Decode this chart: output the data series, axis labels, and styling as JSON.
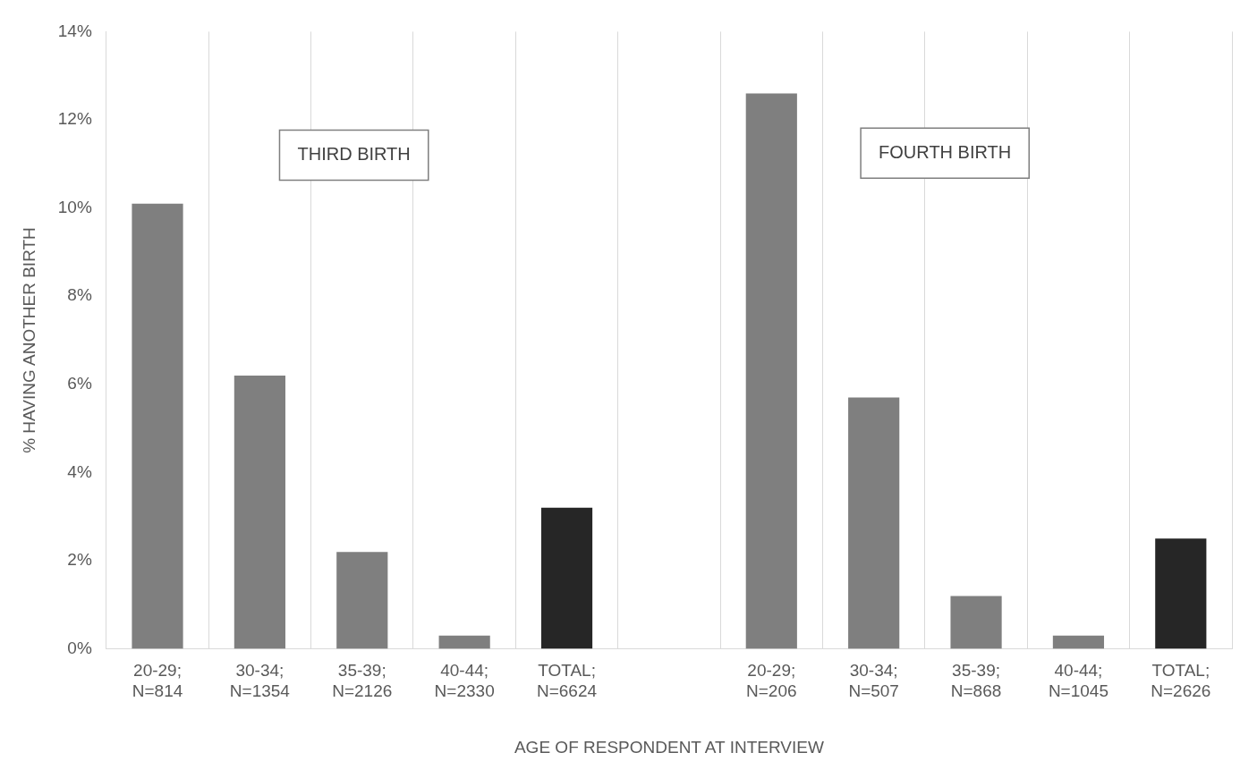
{
  "chart_data": {
    "type": "bar",
    "xlabel": "AGE OF RESPONDENT AT INTERVIEW",
    "ylabel": "% HAVING ANOTHER BIRTH",
    "categories": [
      "20-29;\nN=814",
      "30-34;\nN=1354",
      "35-39;\nN=2126",
      "40-44;\nN=2330",
      "TOTAL;\nN=6624",
      null,
      "20-29;\nN=206",
      "30-34;\nN=507",
      "35-39;\nN=868",
      "40-44;\nN=1045",
      "TOTAL;\nN=2626"
    ],
    "values": [
      10.1,
      6.2,
      2.2,
      0.3,
      3.2,
      null,
      12.6,
      5.7,
      1.2,
      0.3,
      2.5
    ],
    "colors": [
      "#7f7f7f",
      "#7f7f7f",
      "#7f7f7f",
      "#7f7f7f",
      "#262626",
      "#7f7f7f",
      "#7f7f7f",
      "#7f7f7f",
      "#7f7f7f",
      "#7f7f7f",
      "#262626"
    ],
    "ylim": [
      0,
      14
    ],
    "yticks": [
      {
        "value": 0,
        "label": "0%"
      },
      {
        "value": 2,
        "label": "2%"
      },
      {
        "value": 4,
        "label": "4%"
      },
      {
        "value": 6,
        "label": "6%"
      },
      {
        "value": 8,
        "label": "8%"
      },
      {
        "value": 10,
        "label": "10%"
      },
      {
        "value": 12,
        "label": "12%"
      },
      {
        "value": 14,
        "label": "14%"
      }
    ],
    "grid": "x",
    "legend": false,
    "annotations": [
      "THIRD BIRTH",
      "FOURTH BIRTH"
    ]
  }
}
